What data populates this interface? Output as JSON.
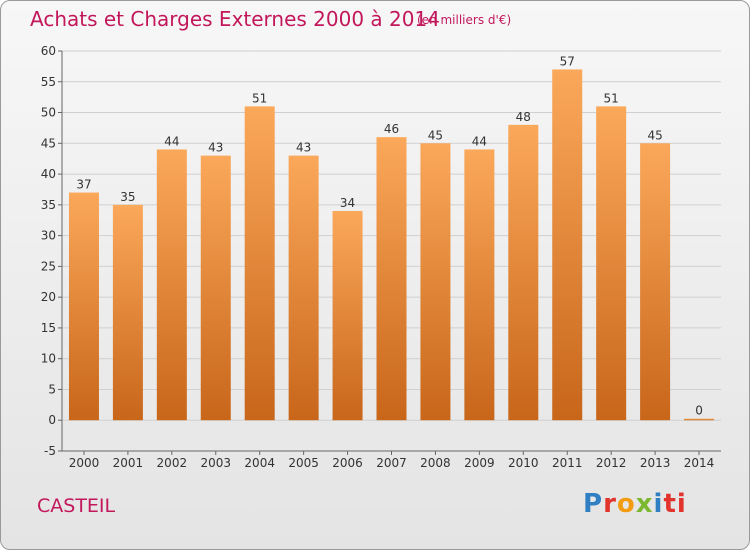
{
  "header": {
    "title": "Achats et Charges Externes 2000 à 2014",
    "subtitle": "(en milliers d'€)"
  },
  "footer": {
    "commune": "CASTEIL",
    "logo_letters": [
      "P",
      "r",
      "o",
      "x",
      "i",
      "ti"
    ]
  },
  "colors": {
    "bar_top": "#fba85a",
    "bar_bottom": "#c8661a",
    "title": "#c2185b"
  },
  "chart_data": {
    "type": "bar",
    "categories": [
      "2000",
      "2001",
      "2002",
      "2003",
      "2004",
      "2005",
      "2006",
      "2007",
      "2008",
      "2009",
      "2010",
      "2011",
      "2012",
      "2013",
      "2014"
    ],
    "values": [
      37,
      35,
      44,
      43,
      51,
      43,
      34,
      46,
      45,
      44,
      48,
      57,
      51,
      45,
      0
    ],
    "data_labels": [
      "37",
      "35",
      "44",
      "43",
      "51",
      "43",
      "34",
      "46",
      "45",
      "44",
      "48",
      "57",
      "51",
      "45",
      "0"
    ],
    "title": "Achats et Charges Externes 2000 à 2014",
    "ylim": [
      -5,
      60
    ],
    "yticks": [
      -5,
      0,
      5,
      10,
      15,
      20,
      25,
      30,
      35,
      40,
      45,
      50,
      55,
      60
    ],
    "ytick_labels": [
      "-5",
      "0",
      "5",
      "10",
      "15",
      "20",
      "25",
      "30",
      "35",
      "40",
      "45",
      "50",
      "55",
      "60"
    ],
    "grid": true
  }
}
